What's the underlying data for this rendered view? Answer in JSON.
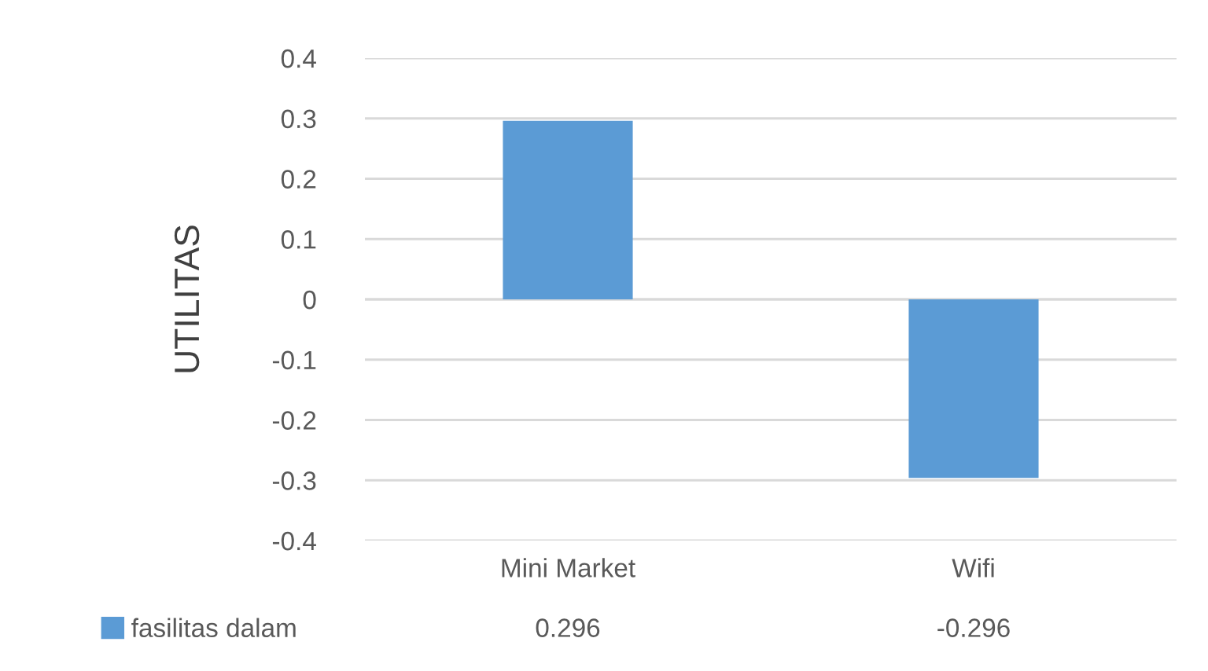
{
  "chart_data": {
    "type": "bar",
    "ylabel": "UTILITAS",
    "categories": [
      "Mini Market",
      "Wifi"
    ],
    "series": [
      {
        "name": "fasilitas dalam",
        "color": "#5b9bd5",
        "values": [
          0.296,
          -0.296
        ]
      }
    ],
    "ylim": [
      -0.4,
      0.4
    ],
    "yticks": [
      -0.4,
      -0.3,
      -0.2,
      -0.1,
      0,
      0.1,
      0.2,
      0.3,
      0.4
    ],
    "grid": "y",
    "legend": "bottom",
    "data_labels": true
  }
}
